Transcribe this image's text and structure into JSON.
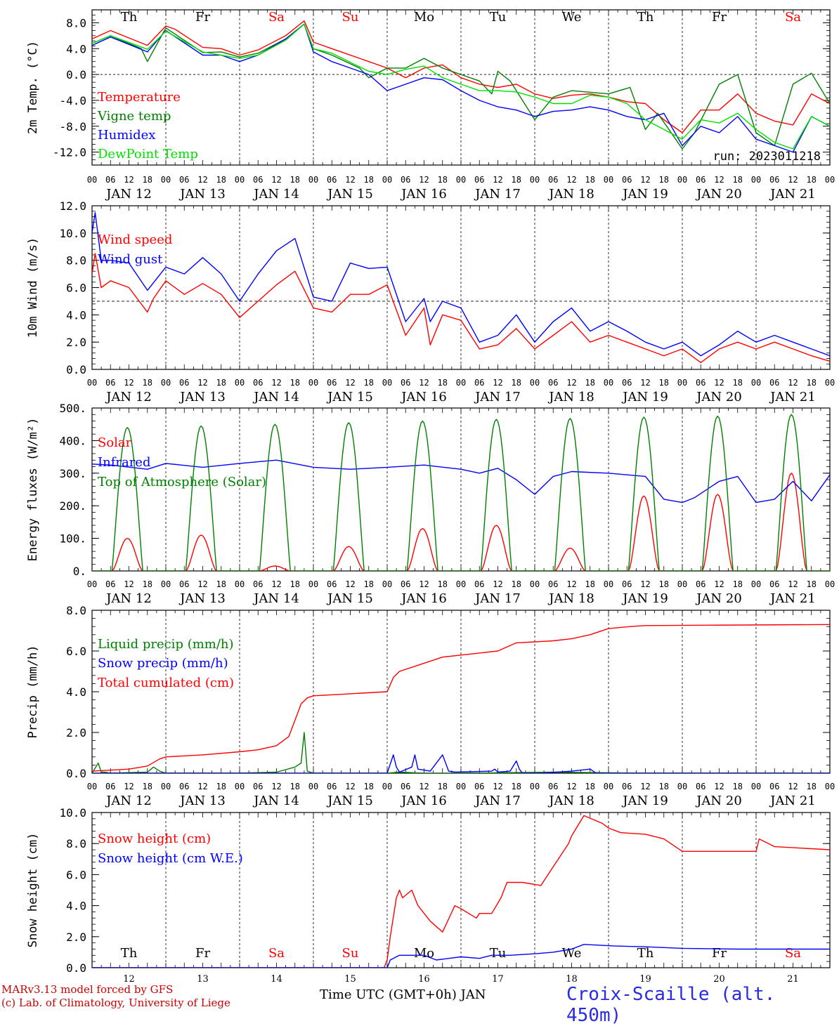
{
  "footer": {
    "model": "MARv3.13 model forced by GFS",
    "credit": "(c) Lab. of Climatology, University of Liege",
    "xtitle": "Time UTC (GMT+0h) JAN",
    "station": "Croix-Scaille (alt. 450m)"
  },
  "days": {
    "weekdays": [
      "Th",
      "Fr",
      "Sa",
      "Su",
      "Mo",
      "Tu",
      "We",
      "Th",
      "Fr",
      "Sa"
    ],
    "weekend": [
      false,
      false,
      true,
      true,
      false,
      false,
      false,
      false,
      false,
      true
    ],
    "dates": [
      "JAN 12",
      "JAN 13",
      "JAN 14",
      "JAN 15",
      "JAN 16",
      "JAN 17",
      "JAN 18",
      "JAN 19",
      "JAN 20",
      "JAN 21"
    ],
    "daynums": [
      "12",
      "13",
      "14",
      "15",
      "16",
      "17",
      "18",
      "19",
      "20",
      "21"
    ],
    "hours": [
      "00",
      "06",
      "12",
      "18"
    ],
    "last_hour": "00"
  },
  "colors": {
    "red": "#ff0000",
    "green": "#008000",
    "blue": "#0000ff",
    "light_green": "#00e000"
  },
  "chart_data": [
    {
      "type": "line",
      "ylabel": "2m Temp. (°C)",
      "ylim": [
        -14,
        10
      ],
      "yticks": [
        "8.0",
        "4.0",
        "0.0",
        "-4.0",
        "-8.0",
        "-12.0"
      ],
      "ytick_values": [
        8,
        4,
        0,
        -4,
        -8,
        -12
      ],
      "annotation": "run: 2023011218",
      "show_weekdays": true,
      "x_unit": "hours from JAN 12 00 UTC",
      "series": [
        {
          "name": "Temperature",
          "color": "#ff0000",
          "x": [
            0,
            6,
            18,
            24,
            27,
            36,
            42,
            48,
            54,
            63,
            69,
            72,
            78,
            90,
            96,
            102,
            108,
            114,
            120,
            126,
            132,
            138,
            144,
            150,
            156,
            162,
            168,
            174,
            180,
            186,
            192,
            198,
            204,
            210,
            216,
            222,
            228,
            234,
            240
          ],
          "y": [
            5.5,
            6.8,
            4.5,
            7.5,
            7,
            4.2,
            4,
            3,
            3.8,
            6,
            8.3,
            5,
            4,
            2,
            1,
            -0.5,
            1,
            1.5,
            -0.5,
            -1.5,
            -2,
            -1.5,
            -3,
            -3.7,
            -3.2,
            -3,
            -3.5,
            -4.2,
            -4.5,
            -7,
            -9,
            -5.5,
            -5.5,
            -3,
            -6,
            -7.2,
            -7.8,
            -3,
            -4.5
          ]
        },
        {
          "name": "Vigne temp",
          "color": "#008000",
          "x": [
            0,
            6,
            16,
            18,
            24,
            36,
            42,
            48,
            54,
            63,
            69,
            72,
            78,
            87,
            90,
            96,
            102,
            108,
            114,
            120,
            126,
            130,
            132,
            136,
            138,
            144,
            150,
            156,
            168,
            175,
            180,
            184,
            192,
            196,
            204,
            210,
            216,
            222,
            228,
            234,
            240
          ],
          "y": [
            4.8,
            6,
            4,
            2,
            7.2,
            3.4,
            3.5,
            2.7,
            3.3,
            5.5,
            7.8,
            4,
            3,
            1,
            -0.5,
            1,
            1,
            2.5,
            1,
            0,
            -1,
            -3,
            0.5,
            -1,
            -2.5,
            -7,
            -3.5,
            -2.5,
            -3,
            -2,
            -8.5,
            -6,
            -11.5,
            -9,
            -1.5,
            0,
            -9,
            -11,
            -1.5,
            0.2,
            -4.5
          ]
        },
        {
          "name": "Humidex",
          "color": "#0000ff",
          "x": [
            0,
            6,
            18,
            24,
            36,
            42,
            48,
            54,
            63,
            69,
            72,
            78,
            90,
            96,
            102,
            108,
            114,
            120,
            126,
            132,
            138,
            144,
            150,
            156,
            162,
            168,
            174,
            180,
            186,
            192,
            198,
            204,
            210,
            216,
            222,
            228,
            234,
            240
          ],
          "y": [
            4.5,
            5.8,
            3.5,
            6.8,
            3,
            3,
            2,
            3,
            5.5,
            7.8,
            3.5,
            2,
            0,
            -2.5,
            -1.5,
            -0.5,
            -0.8,
            -2.5,
            -4,
            -5,
            -5.5,
            -6.5,
            -5.7,
            -5.5,
            -5,
            -5.5,
            -6.5,
            -7,
            -6,
            -11,
            -8,
            -9,
            -6.5,
            -10,
            -11,
            -12,
            -6.5,
            -8
          ]
        },
        {
          "name": "DewPoint Temp",
          "color": "#00e000",
          "x": [
            0,
            6,
            18,
            24,
            36,
            48,
            54,
            63,
            69,
            72,
            78,
            90,
            96,
            102,
            108,
            114,
            120,
            126,
            132,
            138,
            144,
            150,
            156,
            162,
            168,
            174,
            180,
            186,
            192,
            198,
            204,
            210,
            216,
            222,
            228,
            234,
            240
          ],
          "y": [
            4.8,
            6,
            3.9,
            6.7,
            3.5,
            2.5,
            3,
            5.3,
            7.8,
            4,
            3.3,
            0.5,
            0,
            0.8,
            1.3,
            -0.5,
            -1.5,
            -2.5,
            -2.5,
            -2.7,
            -3.5,
            -4.5,
            -4.5,
            -3.2,
            -3.5,
            -4.5,
            -7,
            -8.5,
            -10,
            -7,
            -7.5,
            -6,
            -8.5,
            -10.5,
            -11.5,
            -6.5,
            -8
          ]
        }
      ]
    },
    {
      "type": "line",
      "ylabel": "10m Wind (m/s)",
      "ylim": [
        0,
        12
      ],
      "yticks": [
        "12.0",
        "10.0",
        "8.0",
        "6.0",
        "4.0",
        "2.0",
        "0.0"
      ],
      "ytick_values": [
        12,
        10,
        8,
        6,
        4,
        2,
        0
      ],
      "hline": 5,
      "series": [
        {
          "name": "Wind speed",
          "color": "#ff0000",
          "x": [
            0,
            1,
            3,
            6,
            12,
            18,
            20,
            24,
            30,
            36,
            42,
            48,
            54,
            60,
            66,
            72,
            78,
            84,
            90,
            96,
            102,
            108,
            110,
            114,
            120,
            126,
            132,
            138,
            144,
            150,
            156,
            162,
            168,
            174,
            180,
            186,
            192,
            198,
            204,
            210,
            216,
            222,
            228,
            234,
            240
          ],
          "y": [
            7,
            8.5,
            6,
            6.5,
            6,
            4.2,
            5.2,
            6.5,
            5.5,
            6.3,
            5.5,
            3.8,
            5,
            6.2,
            7.2,
            4.5,
            4.2,
            5.5,
            5.5,
            6.2,
            2.5,
            4.5,
            1.8,
            4,
            3.6,
            1.5,
            1.8,
            3,
            1.5,
            2.5,
            3.5,
            2,
            2.5,
            2,
            1.5,
            1,
            1.5,
            0.5,
            1.5,
            2,
            1.5,
            2,
            1.5,
            1,
            0.6
          ]
        },
        {
          "name": "Wind gust",
          "color": "#0000ff",
          "x": [
            0,
            1,
            3,
            6,
            12,
            18,
            24,
            30,
            36,
            42,
            48,
            54,
            60,
            66,
            72,
            78,
            84,
            90,
            96,
            102,
            108,
            110,
            114,
            120,
            126,
            132,
            138,
            144,
            150,
            156,
            162,
            168,
            174,
            180,
            186,
            192,
            198,
            204,
            210,
            216,
            222,
            228,
            234,
            240
          ],
          "y": [
            10,
            11.5,
            8,
            8,
            7.8,
            5.8,
            7.5,
            7,
            8.2,
            7,
            5,
            7,
            8.7,
            9.6,
            5.3,
            5,
            7.8,
            7.4,
            7.5,
            3.5,
            5.2,
            3.5,
            5,
            4.5,
            2,
            2.5,
            4,
            2,
            3.5,
            4.5,
            2.8,
            3.5,
            2.8,
            2,
            1.5,
            2,
            1,
            1.8,
            2.8,
            2,
            2.5,
            2,
            1.5,
            1
          ]
        }
      ]
    },
    {
      "type": "line",
      "ylabel": "Energy fluxes (W/m²)",
      "ylim": [
        0,
        500
      ],
      "yticks": [
        "500.",
        "400.",
        "300.",
        "200.",
        "100.",
        "0."
      ],
      "ytick_values": [
        500,
        400,
        300,
        200,
        100,
        0
      ],
      "series": [
        {
          "name": "Solar",
          "color": "#ff0000",
          "peaks": [
            100,
            110,
            15,
            75,
            130,
            140,
            70,
            230,
            235,
            300
          ]
        },
        {
          "name": "Infrared",
          "color": "#0000ff",
          "x": [
            0,
            6,
            18,
            24,
            36,
            48,
            60,
            72,
            84,
            96,
            108,
            120,
            126,
            132,
            138,
            144,
            150,
            156,
            168,
            180,
            186,
            192,
            196,
            204,
            210,
            216,
            222,
            228,
            234,
            240
          ],
          "y": [
            328,
            325,
            312,
            330,
            318,
            330,
            340,
            318,
            312,
            318,
            325,
            312,
            300,
            315,
            280,
            235,
            290,
            305,
            300,
            290,
            220,
            210,
            225,
            275,
            290,
            210,
            220,
            275,
            215,
            295
          ]
        },
        {
          "name": "Top of Atmosphere (Solar)",
          "color": "#008000",
          "peaks": [
            440,
            445,
            450,
            455,
            460,
            465,
            468,
            472,
            475,
            480
          ]
        }
      ]
    },
    {
      "type": "line",
      "ylabel": "Precip (mm/h)",
      "ylim": [
        0,
        8
      ],
      "yticks": [
        "8.0",
        "6.0",
        "4.0",
        "2.0",
        "0.0"
      ],
      "ytick_values": [
        8,
        6,
        4,
        2,
        0
      ],
      "series": [
        {
          "name": "Liquid precip (mm/h)",
          "color": "#008000",
          "x": [
            0,
            2,
            3,
            4,
            6,
            18,
            20,
            22,
            24,
            48,
            60,
            66,
            68,
            69,
            70,
            72,
            96,
            100,
            108,
            120,
            150,
            180,
            240
          ],
          "y": [
            0,
            0.5,
            0.05,
            0.05,
            0,
            0.05,
            0.3,
            0.1,
            0,
            0,
            0.05,
            0.3,
            0.5,
            2,
            0.1,
            0,
            0,
            0.05,
            0,
            0,
            0.05,
            0,
            0
          ]
        },
        {
          "name": "Snow precip (mm/h)",
          "color": "#0000ff",
          "x": [
            0,
            96,
            98,
            99,
            100,
            104,
            105,
            106,
            110,
            114,
            116,
            118,
            130,
            131,
            132,
            136,
            138,
            139,
            140,
            146,
            156,
            162,
            164,
            240
          ],
          "y": [
            0,
            0,
            0.9,
            0.3,
            0.05,
            0.3,
            0.9,
            0.2,
            0.1,
            0.9,
            0.1,
            0.05,
            0.1,
            0.2,
            0.05,
            0.1,
            0.6,
            0.2,
            0,
            0,
            0.1,
            0.2,
            0,
            0
          ]
        },
        {
          "name": "Total cumulated (cm)",
          "color": "#ff0000",
          "x": [
            0,
            12,
            18,
            22,
            24,
            36,
            48,
            54,
            60,
            64,
            66,
            68,
            70,
            72,
            84,
            96,
            98,
            100,
            106,
            114,
            120,
            126,
            132,
            138,
            144,
            150,
            156,
            162,
            168,
            175,
            180,
            240
          ],
          "y": [
            0.1,
            0.2,
            0.35,
            0.7,
            0.8,
            0.9,
            1.05,
            1.15,
            1.35,
            1.8,
            2.6,
            3.4,
            3.7,
            3.8,
            3.9,
            4,
            4.7,
            5,
            5.3,
            5.7,
            5.8,
            5.9,
            6,
            6.4,
            6.45,
            6.5,
            6.6,
            6.8,
            7.1,
            7.2,
            7.25,
            7.3
          ]
        }
      ]
    },
    {
      "type": "line",
      "ylabel": "Snow height (cm)",
      "ylim": [
        0,
        10
      ],
      "yticks": [
        "10.0",
        "8.0",
        "6.0",
        "4.0",
        "2.0",
        "0.0"
      ],
      "ytick_values": [
        10,
        8,
        6,
        4,
        2,
        0
      ],
      "show_weekdays": true,
      "series": [
        {
          "name": "Snow height (cm)",
          "color": "#ff0000",
          "x": [
            0,
            95,
            96,
            97,
            99,
            100,
            101,
            104,
            106,
            110,
            114,
            118,
            120,
            125,
            126,
            130,
            133,
            135,
            138,
            140,
            146,
            150,
            155,
            156,
            160,
            166,
            168,
            172,
            180,
            186,
            192,
            200,
            204,
            216,
            217,
            222,
            240
          ],
          "y": [
            0,
            0,
            0.5,
            2,
            4.5,
            5,
            4.5,
            5,
            4,
            3,
            2.3,
            4,
            3.8,
            3.2,
            3.5,
            3.5,
            4.5,
            5.5,
            5.5,
            5.5,
            5.3,
            6.5,
            8,
            8.5,
            9.8,
            9.3,
            9,
            8.7,
            8.6,
            8.3,
            7.5,
            7.5,
            7.5,
            7.5,
            8.3,
            7.8,
            7.6
          ]
        },
        {
          "name": "Snow height (cm W.E.)",
          "color": "#0000ff",
          "x": [
            0,
            96,
            97,
            100,
            108,
            112,
            120,
            126,
            130,
            136,
            144,
            150,
            156,
            160,
            170,
            180,
            192,
            210,
            240
          ],
          "y": [
            0,
            0,
            0.5,
            0.8,
            0.8,
            0.5,
            0.7,
            0.6,
            0.8,
            0.8,
            0.9,
            1,
            1.2,
            1.5,
            1.4,
            1.35,
            1.25,
            1.2,
            1.2
          ]
        }
      ]
    }
  ]
}
